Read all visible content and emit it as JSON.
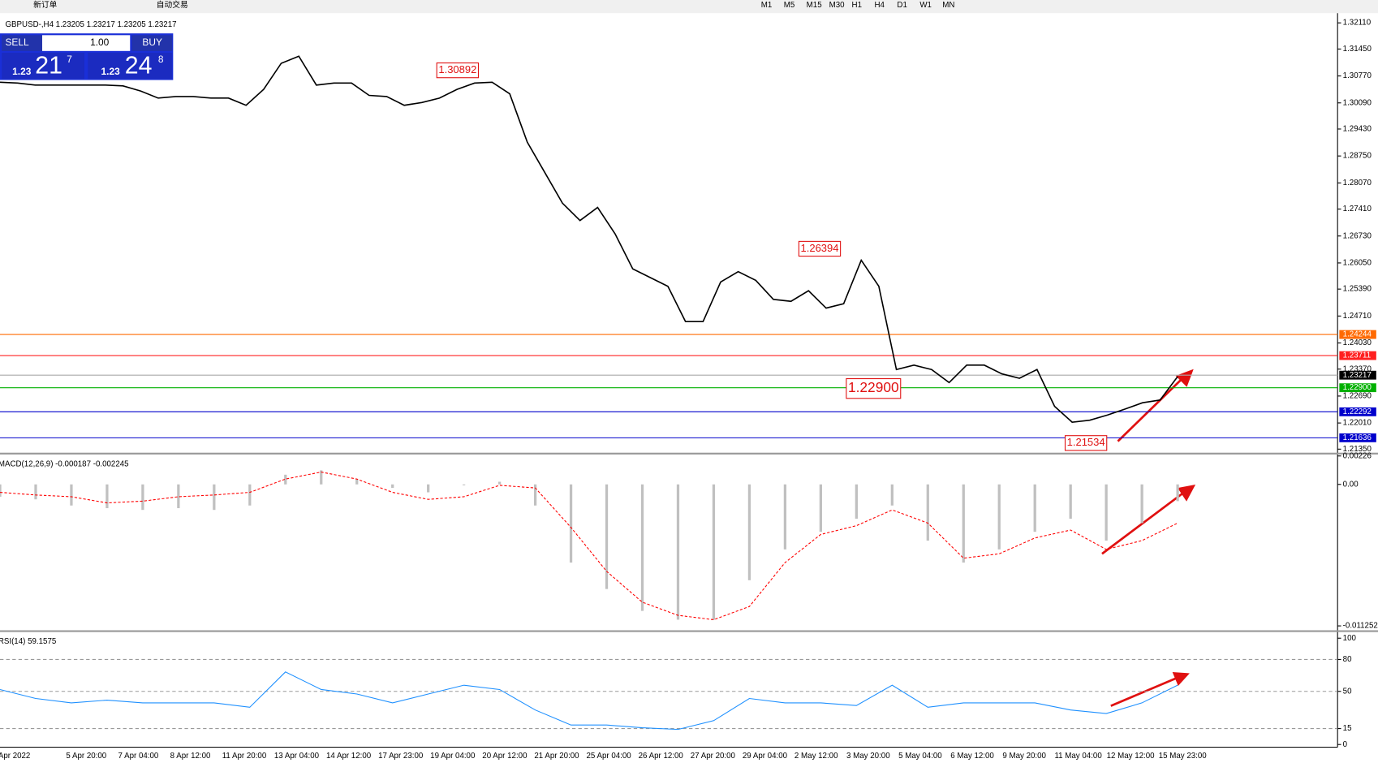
{
  "toolbar": {
    "new_order": "新订单",
    "auto_trading": "自动交易",
    "timeframes": [
      "M1",
      "M5",
      "M15",
      "M30",
      "H1",
      "H4",
      "D1",
      "W1",
      "MN"
    ]
  },
  "trade_panel": {
    "sell": "SELL",
    "lots": "1.00",
    "buy": "BUY",
    "sell_big": "1.23",
    "sell_pips": "21",
    "sell_point": "7",
    "buy_big": "1.23",
    "buy_pips": "24",
    "buy_point": "8"
  },
  "time_axis": {
    "labels": [
      "Apr 2022",
      "5 Apr 20:00",
      "7 Apr 04:00",
      "8 Apr 12:00",
      "11 Apr 20:00",
      "13 Apr 04:00",
      "14 Apr 12:00",
      "17 Apr 23:00",
      "19 Apr 04:00",
      "20 Apr 12:00",
      "21 Apr 20:00",
      "25 Apr 04:00",
      "26 Apr 12:00",
      "27 Apr 20:00",
      "29 Apr 04:00",
      "2 May 12:00",
      "3 May 20:00",
      "5 May 04:00",
      "6 May 12:00",
      "9 May 20:00",
      "11 May 04:00",
      "12 May 12:00",
      "15 May 23:00"
    ]
  },
  "chart_data": [
    {
      "type": "line",
      "title": "GBPUSD-,H4  1.23205 1.23217 1.23205 1.23217",
      "color": "#000000",
      "values": [
        1.3061,
        1.3059,
        1.3054,
        1.3054,
        1.3054,
        1.3054,
        1.3054,
        1.3052,
        1.3039,
        1.3021,
        1.3025,
        1.3025,
        1.3021,
        1.3021,
        1.3003,
        1.3043,
        1.3109,
        1.3127,
        1.3054,
        1.3059,
        1.3059,
        1.3028,
        1.3025,
        1.3003,
        1.301,
        1.3021,
        1.3043,
        1.3059,
        1.3061,
        1.3032,
        1.291,
        1.2833,
        1.2756,
        1.2712,
        1.2745,
        1.2678,
        1.259,
        1.2568,
        1.2546,
        1.2457,
        1.2457,
        1.2557,
        1.2583,
        1.2561,
        1.2513,
        1.2508,
        1.2535,
        1.2491,
        1.2502,
        1.2612,
        1.2546,
        1.2336,
        1.2347,
        1.2336,
        1.2303,
        1.2347,
        1.2347,
        1.2325,
        1.2314,
        1.2336,
        1.2243,
        1.2203,
        1.2208,
        1.2221,
        1.2236,
        1.2252,
        1.2259,
        1.2318
      ],
      "ylim": [
        1.2126,
        1.3231
      ],
      "yticks": [
        {
          "value": 1.3211,
          "label": "1.32110"
        },
        {
          "value": 1.3145,
          "label": "1.31450"
        },
        {
          "value": 1.3077,
          "label": "1.30770"
        },
        {
          "value": 1.3009,
          "label": "1.30090"
        },
        {
          "value": 1.2943,
          "label": "1.29430"
        },
        {
          "value": 1.2875,
          "label": "1.28750"
        },
        {
          "value": 1.2807,
          "label": "1.28070"
        },
        {
          "value": 1.2741,
          "label": "1.27410"
        },
        {
          "value": 1.2673,
          "label": "1.26730"
        },
        {
          "value": 1.2605,
          "label": "1.26050"
        },
        {
          "value": 1.2539,
          "label": "1.25390"
        },
        {
          "value": 1.2471,
          "label": "1.24710"
        },
        {
          "value": 1.2403,
          "label": "1.24030"
        },
        {
          "value": 1.2337,
          "label": "1.23370"
        },
        {
          "value": 1.2269,
          "label": "1.22690"
        },
        {
          "value": 1.2201,
          "label": "1.22010"
        },
        {
          "value": 1.2135,
          "label": "1.21350"
        }
      ],
      "levels": [
        {
          "value": 1.24244,
          "color": "#ff6a00"
        },
        {
          "value": 1.23711,
          "color": "#ff2020"
        },
        {
          "value": 1.23217,
          "color": "#000000"
        },
        {
          "value": 1.229,
          "label": "1.22900",
          "color": "#00b000"
        },
        {
          "value": 1.22292,
          "color": "#0000cc"
        },
        {
          "value": 1.21636,
          "color": "#0000cc"
        }
      ],
      "annotations": [
        "1.30892",
        "1.26394",
        "1.22900",
        "1.21534"
      ]
    },
    {
      "type": "macd",
      "title": "MACD(12,26,9) -0.000187 -0.002245",
      "color": "#c0c0c0",
      "values": [
        -0.00098,
        -0.00119,
        -0.00168,
        -0.00189,
        -0.00203,
        -0.00189,
        -0.00203,
        -0.00168,
        0.00077,
        0.00112,
        0.00042,
        -0.00028,
        -0.00063,
        -7e-05,
        0.00021,
        -0.00168,
        -0.00622,
        -0.00832,
        -0.01006,
        -0.01076,
        -0.01076,
        -0.00762,
        -0.00517,
        -0.00377,
        -0.00273,
        -0.00168,
        -0.00447,
        -0.00622,
        -0.00517,
        -0.00377,
        -0.00273,
        -0.00447,
        -0.00308,
        -0.00133
      ],
      "signal": {
        "color": "#ff0000",
        "values": [
          -0.00063,
          -0.00084,
          -0.00098,
          -0.00147,
          -0.00133,
          -0.00098,
          -0.00084,
          -0.00063,
          0.00042,
          0.00098,
          0.00042,
          -0.00063,
          -0.00119,
          -0.00098,
          -7e-05,
          -0.00028,
          -0.00342,
          -0.00692,
          -0.00937,
          -0.01041,
          -0.01076,
          -0.00971,
          -0.00622,
          -0.00398,
          -0.00328,
          -0.00203,
          -0.00308,
          -0.00587,
          -0.00552,
          -0.00426,
          -0.00363,
          -0.00517,
          -0.00447,
          -0.00308
        ]
      },
      "ylim": [
        -0.0116,
        0.00238
      ],
      "yticks": [
        0.00226,
        {
          "value": 0,
          "label": "0.00"
        },
        -0.011252
      ]
    },
    {
      "type": "line",
      "title": "RSI(14) 59.1575",
      "color": "#1e90ff",
      "values": [
        51.7,
        43.3,
        39.2,
        41.7,
        39.2,
        39.2,
        39.2,
        35,
        68.3,
        51.7,
        47.5,
        39.2,
        47.5,
        55.8,
        51.7,
        32.5,
        18.3,
        18.3,
        15.8,
        14.2,
        22.5,
        43.3,
        39.2,
        39.2,
        36.7,
        55.8,
        35,
        39.2,
        39.2,
        39.2,
        32.5,
        29.2,
        39.2,
        55.8
      ],
      "ylim": [
        -2.5,
        105.8
      ],
      "yticks": [
        100,
        80,
        50,
        15,
        0
      ],
      "levels": [
        80,
        50,
        15
      ]
    }
  ]
}
